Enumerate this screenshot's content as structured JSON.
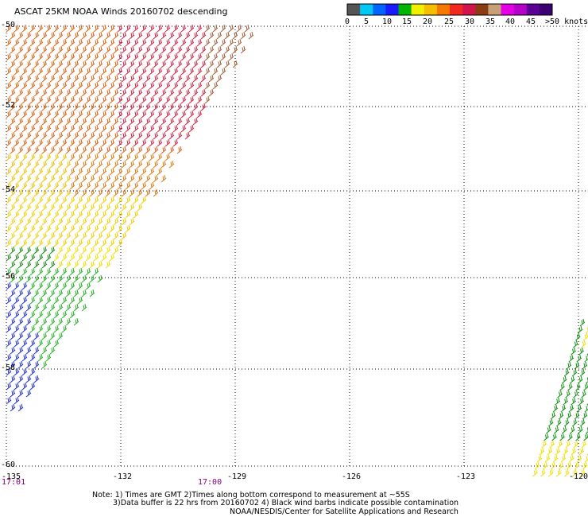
{
  "title": "ASCAT 25KM NOAA Winds 20160702 descending",
  "legend": {
    "ticks": [
      "0",
      "5",
      "10",
      "15",
      "20",
      "25",
      "30",
      "35",
      "40",
      "45",
      ">50 knots"
    ],
    "colors": [
      "#555555",
      "#00c8f5",
      "#0064ff",
      "#1a1aff",
      "#00b400",
      "#f0f000",
      "#f5be00",
      "#f57800",
      "#f0281e",
      "#d2144b",
      "#8c3c14",
      "#c8a078",
      "#e600e6",
      "#b400c8",
      "#5a0096",
      "#3c0073"
    ]
  },
  "map": {
    "lat_labels": [
      "-50",
      "-52",
      "-54",
      "-56",
      "-58",
      "-60"
    ],
    "lon_labels": [
      "-135",
      "-132",
      "-129",
      "-126",
      "-123",
      "-120"
    ],
    "time_labels": [
      "17:01",
      "17:00"
    ]
  },
  "notes": {
    "line1": "Note: 1) Times are GMT 2)Times along bottom correspond to measurement at ~55S",
    "line2": "3)Data buffer is 22 hrs from 20160702 4) Black wind barbs indicate possible contamination",
    "line3": "NOAA/NESDIS/Center for Satellite Applications and Research"
  }
}
